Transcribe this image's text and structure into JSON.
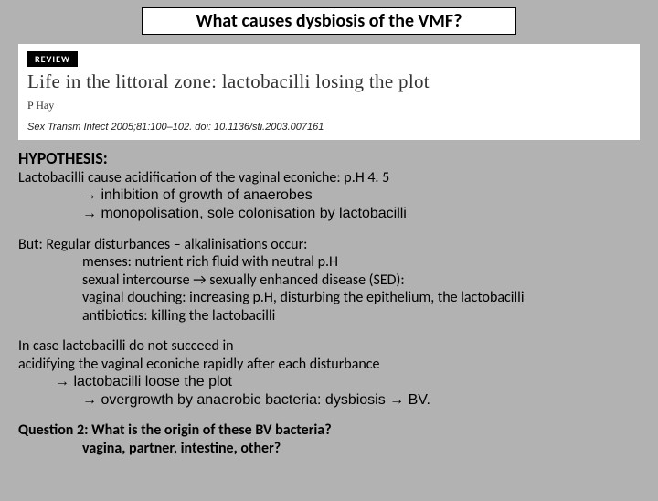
{
  "colors": {
    "background": "#b2b2b2",
    "panel": "#ffffff",
    "text": "#000000",
    "badge_bg": "#000000",
    "badge_fg": "#ffffff"
  },
  "title": "What causes dysbiosis of the VMF?",
  "citation": {
    "badge": "REVIEW",
    "paper_title": "Life in the littoral zone: lactobacilli losing the plot",
    "author": "P Hay",
    "journal": "Sex Transm Infect 2005;81:100–102. doi: 10.1136/sti.2003.007161"
  },
  "body": {
    "hypothesis_label": "HYPOTHESIS:",
    "p1_l1": "Lactobacilli cause acidification of the vaginal econiche: p.H 4. 5",
    "p1_l2": "→ inhibition of growth of anaerobes",
    "p1_l3": "→ monopolisation, sole colonisation by lactobacilli",
    "p2_l1": "But: Regular disturbances – alkalinisations occur:",
    "p2_l2": "menses: nutrient rich fluid with neutral p.H",
    "p2_l3": "sexual intercourse → sexually enhanced disease (SED):",
    "p2_l4": "vaginal douching: increasing p.H, disturbing the epithelium, the lactobacilli",
    "p2_l5": "antibiotics: killing the lactobacilli",
    "p3_l1": "In case lactobacilli do not succeed in",
    "p3_l2": "acidifying the vaginal econiche rapidly after each disturbance",
    "p3_l3": "→ lactobacilli loose the plot",
    "p3_l4": "→ overgrowth by anaerobic bacteria: dysbiosis → BV.",
    "q_l1": "Question 2: What is the origin of these BV bacteria?",
    "q_l2": "vagina, partner, intestine, other?"
  }
}
